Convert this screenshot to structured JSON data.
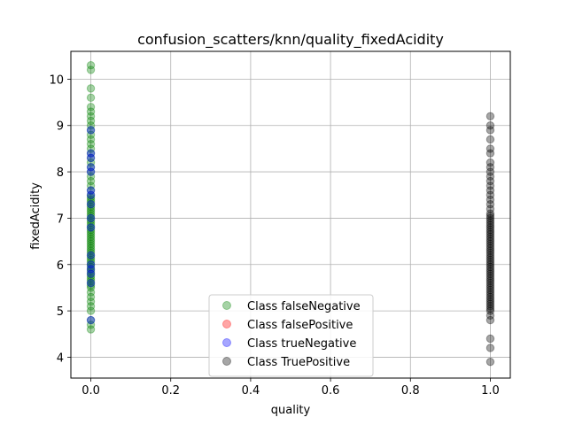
{
  "chart_data": {
    "type": "scatter",
    "title": "confusion_scatters/knn/quality_fixedAcidity",
    "xlabel": "quality",
    "ylabel": "fixedAcidity",
    "xlim": [
      -0.05,
      1.05
    ],
    "ylim": [
      3.55,
      10.6
    ],
    "xticks": [
      0.0,
      0.2,
      0.4,
      0.6,
      0.8,
      1.0
    ],
    "xtick_labels": [
      "0.0",
      "0.2",
      "0.4",
      "0.6",
      "0.8",
      "1.0"
    ],
    "yticks": [
      4,
      5,
      6,
      7,
      8,
      9,
      10
    ],
    "ytick_labels": [
      "4",
      "5",
      "6",
      "7",
      "8",
      "9",
      "10"
    ],
    "grid": true,
    "legend_position": "lower-center",
    "series": [
      {
        "name": "Class falseNegative",
        "color": "#2ca02c",
        "marker_color": "#008000",
        "x": [
          0,
          0,
          0,
          0,
          0,
          0,
          0,
          0,
          0,
          0,
          0,
          0,
          0,
          0,
          0,
          0,
          0,
          0,
          0,
          0,
          0,
          0,
          0,
          0,
          0,
          0,
          0,
          0,
          0,
          0,
          0,
          0,
          0,
          0,
          0,
          0,
          0,
          0,
          0,
          0,
          0,
          0,
          0,
          0,
          0,
          0,
          0,
          0,
          0,
          0,
          0,
          0,
          0,
          0,
          0,
          0,
          0,
          0,
          0,
          0,
          0,
          0,
          0,
          0,
          0,
          0,
          0,
          0,
          0,
          0,
          0,
          0
        ],
        "y": [
          4.6,
          4.7,
          4.8,
          5.0,
          5.1,
          5.2,
          5.3,
          5.4,
          5.5,
          5.6,
          5.7,
          5.8,
          5.9,
          6.0,
          6.1,
          6.2,
          6.3,
          6.4,
          6.5,
          6.6,
          6.7,
          6.8,
          6.9,
          7.0,
          7.1,
          7.2,
          7.3,
          7.4,
          7.5,
          7.6,
          7.7,
          7.8,
          7.9,
          8.0,
          8.1,
          8.2,
          8.3,
          8.4,
          8.5,
          8.6,
          8.7,
          8.8,
          8.9,
          9.0,
          9.1,
          9.2,
          9.3,
          9.4,
          9.6,
          9.8,
          10.2,
          10.3,
          5.55,
          5.65,
          5.75,
          5.85,
          5.95,
          6.05,
          6.15,
          6.25,
          6.35,
          6.45,
          6.55,
          6.65,
          6.75,
          6.85,
          6.95,
          7.05,
          7.15,
          7.25,
          7.35,
          7.45
        ]
      },
      {
        "name": "Class falsePositive",
        "color": "#ff0000",
        "x": [],
        "y": []
      },
      {
        "name": "Class trueNegative",
        "color": "#0000ff",
        "x": [
          0,
          0,
          0,
          0,
          0,
          0,
          0,
          0,
          0,
          0,
          0,
          0,
          0,
          0,
          0,
          0
        ],
        "y": [
          4.8,
          5.6,
          5.8,
          5.9,
          6.0,
          6.2,
          6.8,
          7.0,
          7.3,
          7.5,
          7.6,
          8.0,
          8.1,
          8.3,
          8.4,
          8.9
        ]
      },
      {
        "name": "Class TruePositive",
        "color": "#000000",
        "x": [
          1,
          1,
          1,
          1,
          1,
          1,
          1,
          1,
          1,
          1,
          1,
          1,
          1,
          1,
          1,
          1,
          1,
          1,
          1,
          1,
          1,
          1,
          1,
          1,
          1,
          1,
          1,
          1,
          1,
          1,
          1,
          1,
          1,
          1,
          1,
          1,
          1,
          1,
          1,
          1,
          1,
          1,
          1,
          1,
          1,
          1,
          1,
          1,
          1,
          1,
          1,
          1,
          1,
          1,
          1,
          1,
          1,
          1,
          1,
          1,
          1,
          1,
          1,
          1,
          1
        ],
        "y": [
          3.9,
          4.2,
          4.4,
          4.8,
          4.9,
          5.0,
          5.1,
          5.2,
          5.3,
          5.4,
          5.5,
          5.6,
          5.7,
          5.8,
          5.9,
          6.0,
          6.1,
          6.2,
          6.3,
          6.4,
          6.5,
          6.6,
          6.7,
          6.8,
          6.9,
          7.0,
          7.1,
          7.2,
          7.3,
          7.4,
          7.5,
          7.6,
          7.7,
          7.8,
          7.9,
          8.0,
          8.1,
          8.2,
          8.4,
          8.5,
          8.7,
          8.9,
          9.0,
          9.2,
          5.05,
          5.15,
          5.25,
          5.35,
          5.45,
          5.55,
          5.65,
          5.75,
          5.85,
          5.95,
          6.05,
          6.15,
          6.25,
          6.35,
          6.45,
          6.55,
          6.65,
          6.75,
          6.85,
          6.95,
          7.05
        ]
      }
    ]
  }
}
